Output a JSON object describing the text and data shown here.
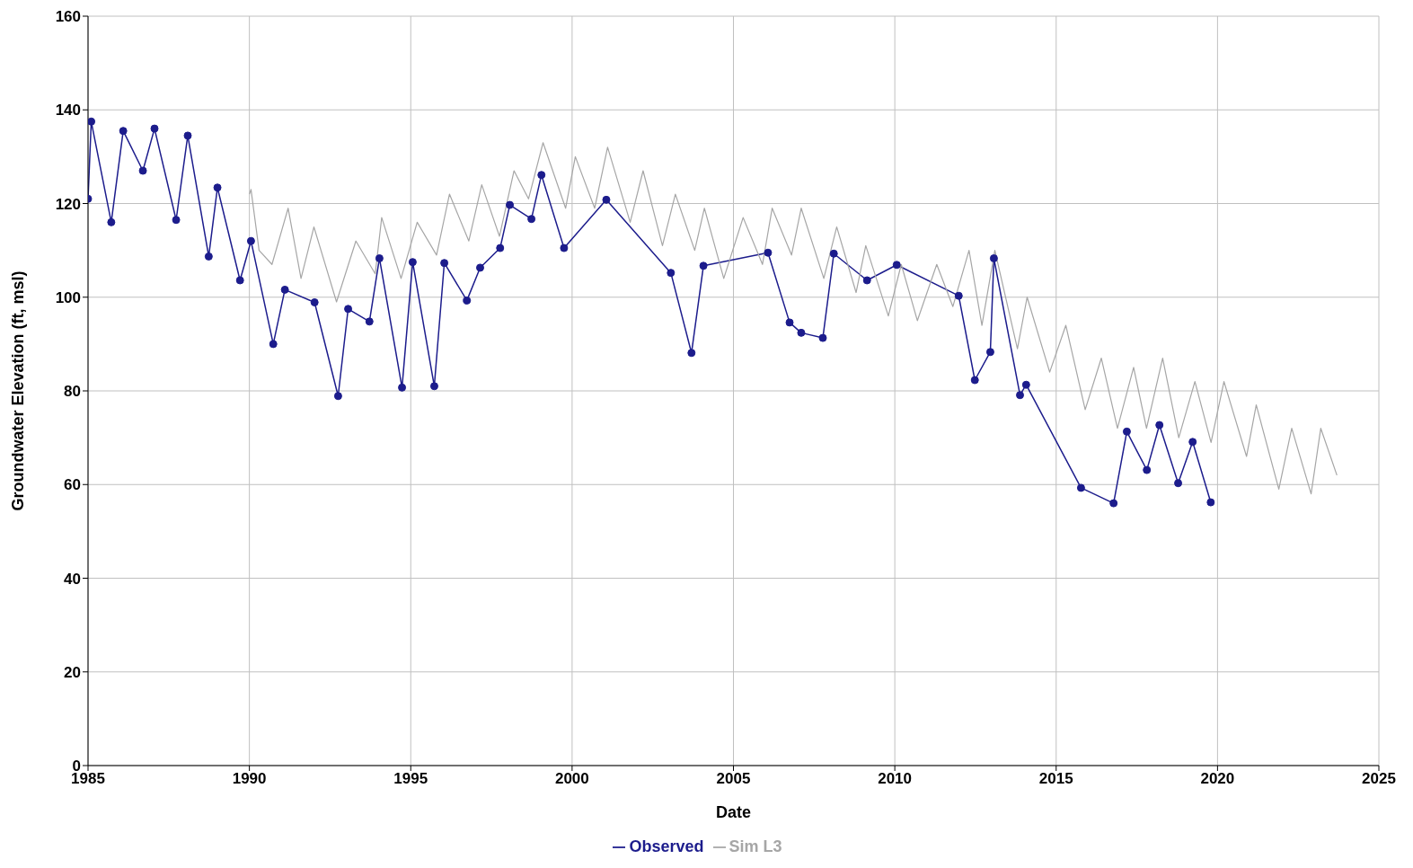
{
  "chart_data": {
    "type": "line",
    "xlabel": "Date",
    "ylabel": "Groundwater Elevation (ft, msl)",
    "xlim": [
      1985,
      2025
    ],
    "xticks": [
      1985,
      1990,
      1995,
      2000,
      2005,
      2010,
      2015,
      2020,
      2025
    ],
    "ylim": [
      0,
      160
    ],
    "yticks": [
      0,
      20,
      40,
      60,
      80,
      100,
      120,
      140,
      160
    ],
    "grid": true,
    "legend": "bottom",
    "line_style": "solid",
    "series": [
      {
        "name": "Observed",
        "color": "#1c1c8c",
        "marker": "circle",
        "x": [
          1985.0,
          1985.1,
          1985.72,
          1986.09,
          1986.7,
          1987.06,
          1987.73,
          1988.09,
          1988.74,
          1989.01,
          1989.71,
          1990.05,
          1990.74,
          1991.1,
          1992.02,
          1992.75,
          1993.06,
          1993.72,
          1994.03,
          1994.73,
          1995.06,
          1995.73,
          1996.04,
          1996.74,
          1997.15,
          1997.77,
          1998.07,
          1998.74,
          1999.05,
          1999.75,
          2001.06,
          2003.06,
          2003.7,
          2004.07,
          2006.07,
          2006.74,
          2007.1,
          2007.77,
          2008.11,
          2009.14,
          2010.06,
          2011.98,
          2012.48,
          2012.96,
          2013.07,
          2013.88,
          2014.07,
          2015.77,
          2016.78,
          2017.19,
          2017.81,
          2018.2,
          2018.78,
          2019.23,
          2019.79
        ],
        "values": [
          121,
          137.5,
          116,
          135.5,
          127,
          136,
          116.5,
          134.5,
          108.7,
          123.4,
          103.6,
          112,
          90,
          101.6,
          98.9,
          78.9,
          97.5,
          94.8,
          108.3,
          80.7,
          107.5,
          81,
          107.3,
          99.3,
          106.3,
          110.5,
          119.7,
          116.7,
          126.1,
          110.5,
          120.8,
          105.2,
          88.1,
          106.7,
          109.5,
          94.6,
          92.4,
          91.3,
          109.3,
          103.6,
          106.9,
          100.3,
          82.3,
          88.3,
          108.3,
          79.1,
          81.3,
          59.3,
          56,
          71.3,
          63.1,
          72.7,
          60.3,
          69.1,
          56.2
        ]
      },
      {
        "name": "Sim L3",
        "color": "#a6a6a6",
        "marker": "none",
        "x": [
          1990.0,
          1990.05,
          1990.3,
          1990.7,
          1991.2,
          1991.6,
          1992.0,
          1992.7,
          1993.3,
          1993.9,
          1994.1,
          1994.7,
          1995.2,
          1995.8,
          1996.2,
          1996.8,
          1997.2,
          1997.75,
          1998.2,
          1998.65,
          1999.1,
          1999.8,
          2000.1,
          2000.7,
          2001.1,
          2001.8,
          2002.2,
          2002.8,
          2003.2,
          2003.8,
          2004.1,
          2004.7,
          2005.3,
          2005.9,
          2006.2,
          2006.8,
          2007.1,
          2007.8,
          2008.2,
          2008.8,
          2009.1,
          2009.8,
          2010.2,
          2010.7,
          2011.3,
          2011.8,
          2012.3,
          2012.7,
          2013.1,
          2013.8,
          2014.1,
          2014.8,
          2015.3,
          2015.9,
          2016.4,
          2016.9,
          2017.4,
          2017.8,
          2018.3,
          2018.8,
          2019.3,
          2019.8,
          2020.2,
          2020.9,
          2021.2,
          2021.9,
          2022.3,
          2022.9,
          2023.2,
          2023.7
        ],
        "values": [
          122,
          123,
          110,
          107,
          119,
          104,
          115,
          99,
          112,
          105,
          117,
          104,
          116,
          109,
          122,
          112,
          124,
          113,
          127,
          121,
          133,
          119,
          130,
          119,
          132,
          116,
          127,
          111,
          122,
          110,
          119,
          104,
          117,
          107,
          119,
          109,
          119,
          104,
          115,
          101,
          111,
          96,
          107,
          95,
          107,
          98,
          110,
          94,
          110,
          89,
          100,
          84,
          94,
          76,
          87,
          72,
          85,
          72,
          87,
          70,
          82,
          69,
          82,
          66,
          77,
          59,
          72,
          58,
          72,
          62
        ]
      }
    ]
  }
}
